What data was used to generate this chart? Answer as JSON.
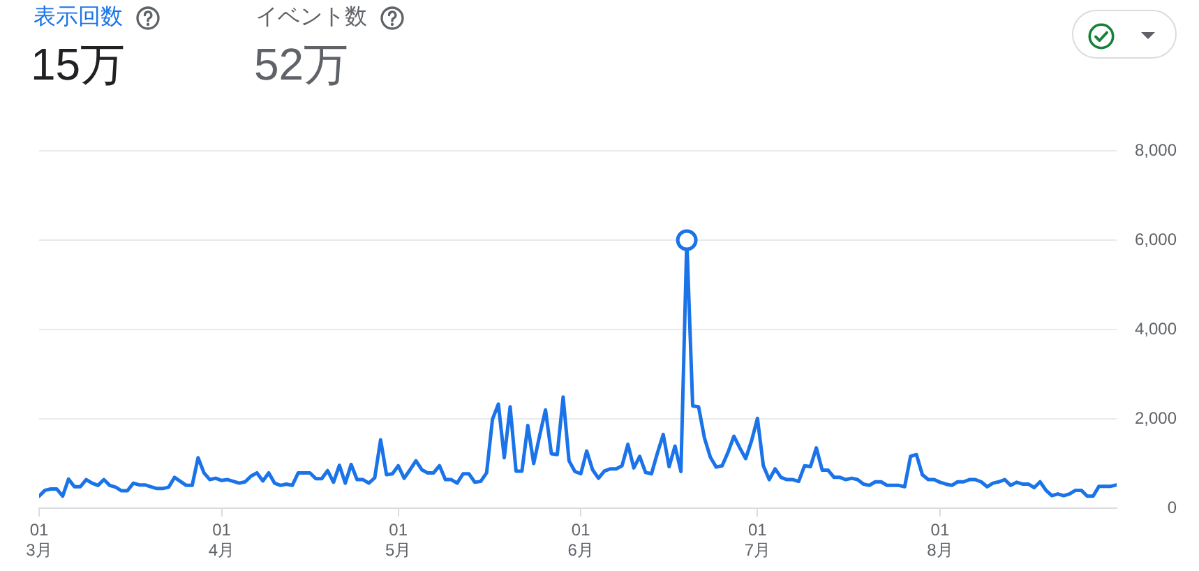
{
  "chart_data": {
    "type": "line",
    "x": [
      "--03-01",
      "--03-02",
      "--03-03",
      "--03-04",
      "--03-05",
      "--03-06",
      "--03-07",
      "--03-08",
      "--03-09",
      "--03-10",
      "--03-11",
      "--03-12",
      "--03-13",
      "--03-14",
      "--03-15",
      "--03-16",
      "--03-17",
      "--03-18",
      "--03-19",
      "--03-20",
      "--03-21",
      "--03-22",
      "--03-23",
      "--03-24",
      "--03-25",
      "--03-26",
      "--03-27",
      "--03-28",
      "--03-29",
      "--03-30",
      "--03-31",
      "--04-01",
      "--04-02",
      "--04-03",
      "--04-04",
      "--04-05",
      "--04-06",
      "--04-07",
      "--04-08",
      "--04-09",
      "--04-10",
      "--04-11",
      "--04-12",
      "--04-13",
      "--04-14",
      "--04-15",
      "--04-16",
      "--04-17",
      "--04-18",
      "--04-19",
      "--04-20",
      "--04-21",
      "--04-22",
      "--04-23",
      "--04-24",
      "--04-25",
      "--04-26",
      "--04-27",
      "--04-28",
      "--04-29",
      "--04-30",
      "--05-01",
      "--05-02",
      "--05-03",
      "--05-04",
      "--05-05",
      "--05-06",
      "--05-07",
      "--05-08",
      "--05-09",
      "--05-10",
      "--05-11",
      "--05-12",
      "--05-13",
      "--05-14",
      "--05-15",
      "--05-16",
      "--05-17",
      "--05-18",
      "--05-19",
      "--05-20",
      "--05-21",
      "--05-22",
      "--05-23",
      "--05-24",
      "--05-25",
      "--05-26",
      "--05-27",
      "--05-28",
      "--05-29",
      "--05-30",
      "--05-31",
      "--06-01",
      "--06-02",
      "--06-03",
      "--06-04",
      "--06-05",
      "--06-06",
      "--06-07",
      "--06-08",
      "--06-09",
      "--06-10",
      "--06-11",
      "--06-12",
      "--06-13",
      "--06-14",
      "--06-15",
      "--06-16",
      "--06-17",
      "--06-18",
      "--06-19",
      "--06-20",
      "--06-21",
      "--06-22",
      "--06-23",
      "--06-24",
      "--06-25",
      "--06-26",
      "--06-27",
      "--06-28",
      "--06-29",
      "--06-30",
      "--07-01",
      "--07-02",
      "--07-03",
      "--07-04",
      "--07-05",
      "--07-06",
      "--07-07",
      "--07-08",
      "--07-09",
      "--07-10",
      "--07-11",
      "--07-12",
      "--07-13",
      "--07-14",
      "--07-15",
      "--07-16",
      "--07-17",
      "--07-18",
      "--07-19",
      "--07-20",
      "--07-21",
      "--07-22",
      "--07-23",
      "--07-24",
      "--07-25",
      "--07-26",
      "--07-27",
      "--07-28",
      "--07-29",
      "--07-30",
      "--07-31",
      "--08-01",
      "--08-02",
      "--08-03",
      "--08-04",
      "--08-05",
      "--08-06",
      "--08-07",
      "--08-08",
      "--08-09",
      "--08-10",
      "--08-11",
      "--08-12",
      "--08-13",
      "--08-14",
      "--08-15",
      "--08-16",
      "--08-17",
      "--08-18",
      "--08-19",
      "--08-20",
      "--08-21",
      "--08-22",
      "--08-23",
      "--08-24",
      "--08-25",
      "--08-26",
      "--08-27",
      "--08-28",
      "--08-29",
      "--08-30",
      "--08-31"
    ],
    "xlim": [
      "--03-01",
      "--08-31"
    ],
    "xticks": [
      {
        "value": "--03-01",
        "label": "01\n3月"
      },
      {
        "value": "--04-01",
        "label": "01\n4月"
      },
      {
        "value": "--05-01",
        "label": "01\n5月"
      },
      {
        "value": "--06-01",
        "label": "01\n6月"
      },
      {
        "value": "--07-01",
        "label": "01\n7月"
      },
      {
        "value": "--08-01",
        "label": "01\n8月"
      }
    ],
    "ylim": [
      0,
      8000
    ],
    "yticks": [
      0,
      {
        "value": 2000,
        "label": "2,000"
      },
      {
        "value": 4000,
        "label": "4,000"
      },
      {
        "value": 6000,
        "label": "6,000"
      },
      {
        "value": 8000,
        "label": "8,000"
      }
    ],
    "grid": "y",
    "legend": "top left",
    "annotations": [
      "15万",
      "イベント数",
      "52万"
    ],
    "series": [
      {
        "name": "表示回数",
        "color": "#1a73e8",
        "marker": "none",
        "values": [
          270,
          400,
          430,
          430,
          270,
          650,
          480,
          480,
          640,
          560,
          510,
          640,
          510,
          470,
          390,
          390,
          560,
          520,
          520,
          480,
          440,
          440,
          470,
          690,
          600,
          510,
          510,
          1130,
          790,
          640,
          670,
          620,
          640,
          600,
          560,
          590,
          720,
          790,
          610,
          790,
          560,
          510,
          540,
          510,
          790,
          790,
          790,
          660,
          660,
          840,
          580,
          960,
          560,
          980,
          640,
          640,
          560,
          680,
          1530,
          750,
          770,
          950,
          670,
          860,
          1060,
          860,
          790,
          790,
          950,
          640,
          640,
          560,
          770,
          770,
          580,
          600,
          790,
          1990,
          2330,
          1130,
          2270,
          830,
          830,
          1850,
          1000,
          1620,
          2200,
          1220,
          1200,
          2490,
          1060,
          820,
          770,
          1280,
          860,
          670,
          830,
          880,
          880,
          950,
          1430,
          900,
          1160,
          800,
          770,
          1230,
          1650,
          930,
          1390,
          820,
          6000,
          2290,
          2270,
          1570,
          1140,
          920,
          950,
          1250,
          1610,
          1350,
          1110,
          1510,
          2010,
          950,
          640,
          880,
          690,
          640,
          640,
          600,
          950,
          930,
          1350,
          850,
          850,
          690,
          690,
          640,
          670,
          640,
          540,
          510,
          590,
          590,
          510,
          510,
          510,
          480,
          1160,
          1200,
          750,
          640,
          640,
          580,
          540,
          510,
          590,
          590,
          640,
          640,
          590,
          480,
          560,
          590,
          640,
          510,
          580,
          540,
          540,
          460,
          590,
          400,
          280,
          320,
          280,
          320,
          400,
          400,
          270,
          270,
          490,
          490,
          490,
          520
        ]
      },
      {
        "type": "scatter",
        "x": [
          "--06-19"
        ],
        "values": [
          6000
        ],
        "color": "#1a73e8",
        "marker": "circle"
      }
    ]
  }
}
